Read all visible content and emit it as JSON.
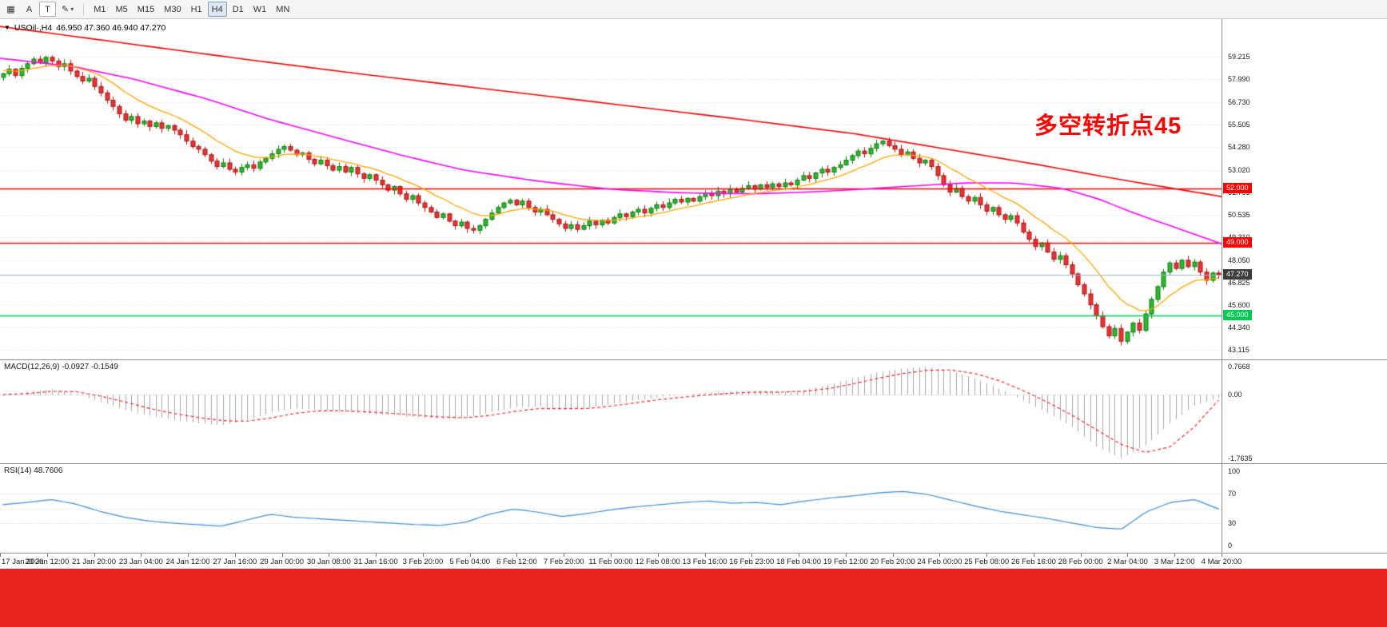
{
  "page": {
    "background": "#ffffff",
    "banner_color": "#e8221c"
  },
  "toolbar": {
    "window_icon": "▦",
    "buttons": [
      {
        "label": "A"
      },
      {
        "label": "T"
      }
    ],
    "draw_tool_icon": "✎",
    "dropdown_caret": "▾",
    "timeframes": [
      "M1",
      "M5",
      "M15",
      "M30",
      "H1",
      "H4",
      "D1",
      "W1",
      "MN"
    ],
    "active_timeframe": "H4"
  },
  "chart": {
    "title": "USOil·,H4",
    "ohlc": "46.950 47.360 46.940 47.270"
  },
  "indicators": {
    "macd_label": "MACD(12,26,9) -0.0927 -0.1549",
    "rsi_label": "RSI(14) 48.7606"
  },
  "annotation": {
    "text": "多空转折点45",
    "color": "#ff0000"
  },
  "chart_data": [
    {
      "type": "candlestick",
      "symbol": "USOil",
      "timeframe": "H4",
      "ohlc": {
        "open": 46.95,
        "high": 47.36,
        "low": 46.94,
        "close": 47.27
      },
      "ylim": [
        42.6,
        61.3
      ],
      "y_ticks": [
        59.215,
        57.99,
        56.73,
        55.505,
        54.28,
        53.02,
        51.795,
        50.535,
        49.31,
        48.05,
        46.825,
        45.6,
        44.34,
        43.115
      ],
      "x_labels": [
        "17 Jan 2020",
        "20 Jan 12:00",
        "21 Jan 20:00",
        "23 Jan 04:00",
        "24 Jan 12:00",
        "27 Jan 16:00",
        "29 Jan 00:00",
        "30 Jan 08:00",
        "31 Jan 16:00",
        "3 Feb 20:00",
        "5 Feb 04:00",
        "6 Feb 12:00",
        "7 Feb 20:00",
        "11 Feb 00:00",
        "12 Feb 08:00",
        "13 Feb 16:00",
        "16 Feb 23:00",
        "18 Feb 04:00",
        "19 Feb 12:00",
        "20 Feb 20:00",
        "24 Feb 00:00",
        "25 Feb 08:00",
        "26 Feb 16:00",
        "28 Feb 00:00",
        "2 Mar 04:00",
        "3 Mar 12:00",
        "4 Mar 20:00"
      ],
      "first_open": 58.1,
      "wick": 0.22,
      "closes": [
        58.3,
        58.55,
        58.2,
        58.6,
        58.85,
        59.1,
        58.9,
        59.2,
        59.0,
        58.7,
        58.85,
        58.45,
        58.15,
        57.9,
        58.05,
        57.6,
        57.25,
        56.85,
        56.5,
        56.1,
        55.75,
        55.95,
        55.55,
        55.7,
        55.4,
        55.6,
        55.3,
        55.45,
        55.2,
        54.95,
        54.6,
        54.3,
        54.15,
        53.85,
        53.5,
        53.2,
        53.4,
        53.05,
        52.9,
        53.15,
        53.3,
        53.1,
        53.45,
        53.65,
        53.9,
        54.15,
        54.3,
        54.1,
        53.85,
        53.95,
        53.6,
        53.35,
        53.55,
        53.25,
        53.0,
        53.2,
        52.9,
        53.15,
        52.8,
        52.55,
        52.75,
        52.45,
        52.2,
        51.9,
        52.1,
        51.7,
        51.4,
        51.6,
        51.2,
        50.95,
        50.7,
        50.4,
        50.6,
        50.2,
        49.95,
        50.15,
        49.8,
        49.7,
        49.95,
        50.3,
        50.65,
        50.95,
        51.2,
        51.35,
        51.1,
        51.3,
        50.95,
        50.7,
        50.85,
        50.55,
        50.3,
        50.05,
        49.8,
        50.0,
        49.75,
        49.95,
        50.2,
        50.0,
        50.25,
        50.1,
        50.4,
        50.6,
        50.45,
        50.7,
        50.85,
        50.65,
        50.9,
        51.1,
        50.95,
        51.2,
        51.4,
        51.25,
        51.45,
        51.3,
        51.55,
        51.75,
        51.6,
        51.85,
        51.7,
        51.95,
        51.8,
        52.0,
        52.15,
        51.95,
        52.2,
        52.05,
        52.25,
        52.1,
        52.3,
        52.2,
        52.45,
        52.7,
        52.55,
        52.85,
        53.05,
        52.9,
        53.15,
        53.3,
        53.55,
        53.8,
        54.05,
        53.9,
        54.2,
        54.45,
        54.6,
        54.35,
        54.15,
        53.85,
        54.0,
        53.65,
        53.4,
        53.55,
        53.2,
        52.7,
        52.2,
        51.8,
        52.0,
        51.55,
        51.3,
        51.5,
        51.1,
        50.75,
        50.95,
        50.55,
        50.3,
        50.5,
        50.1,
        49.6,
        49.2,
        48.8,
        49.0,
        48.5,
        48.1,
        48.3,
        47.8,
        47.3,
        46.7,
        46.2,
        45.6,
        45.0,
        44.4,
        43.9,
        44.3,
        43.6,
        44.1,
        44.6,
        44.2,
        45.1,
        45.9,
        46.6,
        47.4,
        47.9,
        47.6,
        48.05,
        47.7,
        47.95,
        47.4,
        46.95,
        47.35,
        47.27
      ],
      "colors": {
        "up_fill": "#2eb82e",
        "up_stroke": "#0e7a0e",
        "down_fill": "#e63434",
        "down_stroke": "#a81717",
        "grid": "#dadada"
      },
      "overlays": {
        "colors": {
          "slow": "#ff0000",
          "medium": "#ff00ff",
          "fast": "#ffa500"
        },
        "ma_slow_anchors": [
          [
            0,
            60.9
          ],
          [
            0.1,
            60.0
          ],
          [
            0.2,
            59.1
          ],
          [
            0.3,
            58.25
          ],
          [
            0.4,
            57.45
          ],
          [
            0.5,
            56.65
          ],
          [
            0.6,
            55.85
          ],
          [
            0.7,
            55.0
          ],
          [
            0.78,
            54.1
          ],
          [
            0.85,
            53.3
          ],
          [
            0.92,
            52.45
          ],
          [
            1,
            51.55
          ]
        ],
        "ma_medium_anchors": [
          [
            0,
            59.15
          ],
          [
            0.06,
            58.7
          ],
          [
            0.11,
            58.0
          ],
          [
            0.17,
            56.9
          ],
          [
            0.22,
            55.8
          ],
          [
            0.28,
            54.7
          ],
          [
            0.33,
            53.8
          ],
          [
            0.38,
            53.0
          ],
          [
            0.44,
            52.4
          ],
          [
            0.5,
            51.95
          ],
          [
            0.56,
            51.75
          ],
          [
            0.62,
            51.7
          ],
          [
            0.68,
            51.85
          ],
          [
            0.74,
            52.1
          ],
          [
            0.79,
            52.3
          ],
          [
            0.83,
            52.3
          ],
          [
            0.87,
            52.0
          ],
          [
            0.9,
            51.4
          ],
          [
            0.93,
            50.6
          ],
          [
            0.96,
            49.9
          ],
          [
            1,
            48.95
          ]
        ],
        "ma_fast_period": 13,
        "ma_fast_seed": 58.5
      },
      "hlines": [
        {
          "price": 52.0,
          "label": "52.000",
          "color": "#ff0000"
        },
        {
          "price": 49.0,
          "label": "49.000",
          "color": "#ff0000"
        },
        {
          "price": 45.0,
          "label": "45.000",
          "color": "#00c853"
        }
      ],
      "current_price": {
        "value": 47.27,
        "label": "47.270",
        "line_color": "#9db6c8",
        "badge_bg": "#3c3c3c"
      }
    },
    {
      "type": "macd",
      "name": "MACD",
      "params": [
        12,
        26,
        9
      ],
      "current_values": [
        -0.0927,
        -0.1549
      ],
      "ylim": [
        -1.9,
        0.95
      ],
      "ticks": [
        [
          0.7668,
          "0.7668"
        ],
        [
          0,
          "0.00"
        ],
        [
          -1.7635,
          "-1.7635"
        ]
      ],
      "histogram_color": "#a6a6a6",
      "signal_color": "#ff1a1a",
      "values": [
        -0.05,
        0.08,
        0.15,
        0.02,
        -0.2,
        -0.42,
        -0.58,
        -0.7,
        -0.78,
        -0.85,
        -0.72,
        -0.5,
        -0.38,
        -0.42,
        -0.48,
        -0.52,
        -0.58,
        -0.63,
        -0.68,
        -0.66,
        -0.5,
        -0.35,
        -0.33,
        -0.42,
        -0.38,
        -0.26,
        -0.16,
        -0.07,
        0.0,
        0.05,
        0.09,
        0.1,
        0.07,
        0.14,
        0.28,
        0.46,
        0.62,
        0.72,
        0.77,
        0.66,
        0.44,
        0.15,
        -0.18,
        -0.52,
        -0.9,
        -1.45,
        -1.76,
        -1.4,
        -0.8,
        -0.3,
        -0.09
      ],
      "signal": [
        0.0,
        0.03,
        0.09,
        0.08,
        -0.04,
        -0.2,
        -0.38,
        -0.52,
        -0.63,
        -0.72,
        -0.74,
        -0.65,
        -0.52,
        -0.45,
        -0.45,
        -0.48,
        -0.52,
        -0.57,
        -0.62,
        -0.64,
        -0.58,
        -0.47,
        -0.39,
        -0.39,
        -0.39,
        -0.32,
        -0.23,
        -0.14,
        -0.07,
        -0.01,
        0.04,
        0.07,
        0.07,
        0.09,
        0.17,
        0.3,
        0.45,
        0.58,
        0.67,
        0.68,
        0.58,
        0.38,
        0.1,
        -0.22,
        -0.58,
        -0.98,
        -1.38,
        -1.6,
        -1.45,
        -0.9,
        -0.155
      ]
    },
    {
      "type": "line",
      "name": "RSI",
      "period": 14,
      "current_value": 48.7606,
      "ylim": [
        -10,
        110
      ],
      "ticks": [
        [
          100,
          "100"
        ],
        [
          70,
          "70"
        ],
        [
          30,
          "30"
        ],
        [
          0,
          "0"
        ]
      ],
      "levels": [
        30,
        50,
        70
      ],
      "line_color": "#3d8fd8",
      "values": [
        55,
        58,
        62,
        56,
        46,
        38,
        33,
        30,
        28,
        26,
        34,
        42,
        38,
        36,
        34,
        32,
        30,
        28,
        27,
        31,
        42,
        49,
        45,
        39,
        43,
        48,
        52,
        55,
        58,
        60,
        57,
        58,
        55,
        60,
        64,
        67,
        71,
        73,
        69,
        61,
        53,
        46,
        41,
        36,
        30,
        24,
        22,
        45,
        58,
        62,
        49
      ]
    }
  ]
}
